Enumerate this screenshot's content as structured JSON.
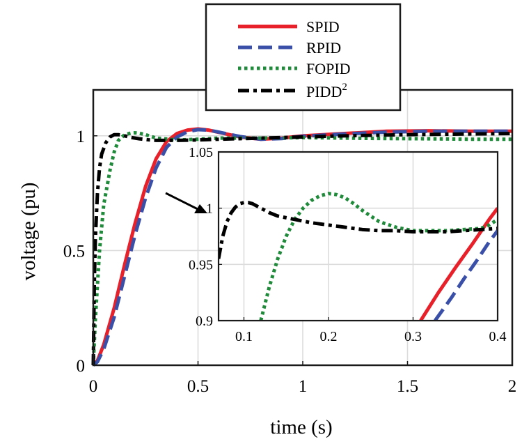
{
  "chart_data": {
    "type": "line",
    "xlabel": "time (s)",
    "ylabel": "voltage (pu)",
    "xlim": [
      0,
      2
    ],
    "ylim": [
      0,
      1.2
    ],
    "xticks": [
      0,
      0.5,
      1,
      1.5,
      2
    ],
    "xtick_labels": [
      "0",
      "0.5",
      "1",
      "1.5",
      "2"
    ],
    "yticks": [
      0,
      0.5,
      1
    ],
    "ytick_labels": [
      "0",
      "0.5",
      "1"
    ],
    "grid": true,
    "legend_position": "top-center, above axes",
    "series": [
      {
        "name": "SPID",
        "legend_label": "SPID",
        "color": "#e8202a",
        "dash": "solid",
        "x": [
          0,
          0.02,
          0.05,
          0.1,
          0.15,
          0.2,
          0.25,
          0.3,
          0.35,
          0.4,
          0.45,
          0.5,
          0.55,
          0.6,
          0.7,
          0.8,
          0.9,
          1.0,
          1.2,
          1.4,
          1.6,
          1.8,
          2.0
        ],
        "y": [
          0,
          0.02,
          0.09,
          0.25,
          0.44,
          0.62,
          0.78,
          0.9,
          0.975,
          1.01,
          1.025,
          1.03,
          1.025,
          1.015,
          0.995,
          0.985,
          0.99,
          1.0,
          1.01,
          1.02,
          1.022,
          1.02,
          1.02
        ]
      },
      {
        "name": "RPID",
        "legend_label": "RPID",
        "color": "#3a4fa8",
        "dash": "long-dash",
        "x": [
          0,
          0.02,
          0.05,
          0.1,
          0.15,
          0.2,
          0.25,
          0.3,
          0.35,
          0.4,
          0.45,
          0.5,
          0.55,
          0.6,
          0.7,
          0.8,
          0.9,
          1.0,
          1.2,
          1.4,
          1.6,
          1.8,
          2.0
        ],
        "y": [
          0,
          0.015,
          0.07,
          0.21,
          0.39,
          0.57,
          0.73,
          0.86,
          0.95,
          0.995,
          1.018,
          1.027,
          1.025,
          1.016,
          0.997,
          0.985,
          0.988,
          0.998,
          1.008,
          1.016,
          1.02,
          1.02,
          1.02
        ]
      },
      {
        "name": "FOPID",
        "legend_label": "FOPID",
        "color": "#1f8a3a",
        "dash": "dotted",
        "x": [
          0,
          0.01,
          0.03,
          0.05,
          0.08,
          0.1,
          0.12,
          0.15,
          0.18,
          0.2,
          0.22,
          0.25,
          0.3,
          0.4,
          0.5,
          0.6,
          0.8,
          1.0,
          1.2,
          1.4,
          1.6,
          1.8,
          2.0
        ],
        "y": [
          0,
          0.2,
          0.5,
          0.7,
          0.85,
          0.93,
          0.98,
          1.005,
          1.012,
          1.013,
          1.011,
          1.005,
          0.99,
          0.982,
          0.985,
          0.99,
          0.99,
          0.992,
          0.99,
          0.988,
          0.987,
          0.985,
          0.985
        ]
      },
      {
        "name": "PIDD2",
        "legend_label": "PIDD",
        "legend_superscript": "2",
        "color": "#000000",
        "dash": "dash-dot",
        "x": [
          0,
          0.005,
          0.01,
          0.02,
          0.03,
          0.04,
          0.06,
          0.08,
          0.1,
          0.12,
          0.14,
          0.18,
          0.22,
          0.26,
          0.3,
          0.4,
          0.5,
          0.6,
          0.8,
          1.0,
          1.2,
          1.5,
          2.0
        ],
        "y": [
          0,
          0.35,
          0.55,
          0.75,
          0.86,
          0.92,
          0.97,
          0.995,
          1.005,
          1.005,
          1.002,
          0.993,
          0.987,
          0.983,
          0.98,
          0.98,
          0.982,
          0.985,
          0.99,
          0.995,
          1.0,
          1.005,
          1.01
        ]
      }
    ],
    "inset": {
      "xlim": [
        0.07,
        0.4
      ],
      "ylim": [
        0.9,
        1.05
      ],
      "xticks": [
        0.1,
        0.2,
        0.3,
        0.4
      ],
      "xtick_labels": [
        "0.1",
        "0.2",
        "0.3",
        "0.4"
      ],
      "yticks": [
        0.9,
        0.95,
        1.0,
        1.05
      ],
      "ytick_labels": [
        "0.9",
        "0.95",
        "1",
        "1.05"
      ],
      "grid": true,
      "series": [
        {
          "name": "SPID",
          "x": [
            0.309,
            0.33,
            0.35,
            0.37,
            0.39,
            0.4
          ],
          "y": [
            0.9,
            0.925,
            0.947,
            0.968,
            0.99,
            1.0
          ]
        },
        {
          "name": "RPID",
          "x": [
            0.326,
            0.345,
            0.36,
            0.375,
            0.39,
            0.4
          ],
          "y": [
            0.9,
            0.92,
            0.937,
            0.953,
            0.97,
            0.98
          ]
        },
        {
          "name": "FOPID",
          "x": [
            0.12,
            0.13,
            0.14,
            0.15,
            0.16,
            0.17,
            0.18,
            0.19,
            0.2,
            0.21,
            0.22,
            0.23,
            0.24,
            0.25,
            0.26,
            0.28,
            0.3,
            0.32,
            0.34,
            0.36,
            0.38,
            0.39,
            0.4
          ],
          "y": [
            0.9,
            0.93,
            0.955,
            0.975,
            0.99,
            1.0,
            1.007,
            1.011,
            1.013,
            1.012,
            1.009,
            1.004,
            0.998,
            0.993,
            0.988,
            0.983,
            0.98,
            0.98,
            0.98,
            0.981,
            0.982,
            0.985,
            0.99
          ]
        },
        {
          "name": "PIDD2",
          "x": [
            0.07,
            0.075,
            0.08,
            0.085,
            0.09,
            0.095,
            0.1,
            0.105,
            0.11,
            0.12,
            0.13,
            0.14,
            0.16,
            0.18,
            0.2,
            0.22,
            0.24,
            0.26,
            0.28,
            0.3,
            0.32,
            0.34,
            0.36,
            0.38,
            0.4
          ],
          "y": [
            0.955,
            0.975,
            0.988,
            0.996,
            1.001,
            1.004,
            1.005,
            1.005,
            1.004,
            1.0,
            0.996,
            0.993,
            0.99,
            0.987,
            0.985,
            0.983,
            0.981,
            0.98,
            0.98,
            0.979,
            0.979,
            0.979,
            0.98,
            0.981,
            0.982
          ]
        }
      ]
    }
  }
}
